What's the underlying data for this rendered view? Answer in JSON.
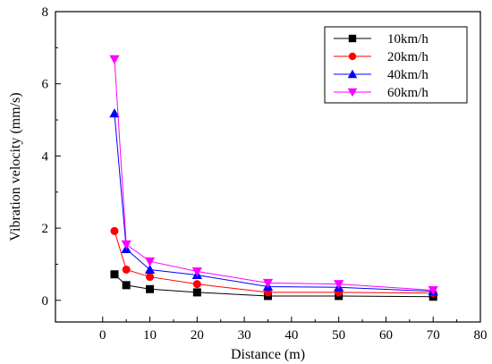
{
  "chart_data": {
    "type": "line",
    "title": "",
    "xlabel": "Distance (m)",
    "ylabel": "Vibration velocity (mm/s)",
    "xlim": [
      -10,
      80
    ],
    "ylim": [
      -0.6,
      8
    ],
    "xticks": [
      0,
      10,
      20,
      30,
      40,
      50,
      60,
      70,
      80
    ],
    "yticks": [
      0,
      2,
      4,
      6,
      8
    ],
    "legend_position": "top-right",
    "grid": false,
    "x": [
      2.5,
      5,
      10,
      20,
      35,
      50,
      70
    ],
    "series": [
      {
        "name": "10km/h",
        "color": "#000000",
        "marker": "square",
        "values": [
          0.72,
          0.42,
          0.31,
          0.22,
          0.12,
          0.12,
          0.1
        ]
      },
      {
        "name": "20km/h",
        "color": "#ff0000",
        "marker": "circle",
        "values": [
          1.92,
          0.85,
          0.65,
          0.45,
          0.22,
          0.22,
          0.2
        ]
      },
      {
        "name": "40km/h",
        "color": "#0000ff",
        "marker": "triangle-up",
        "values": [
          5.18,
          1.42,
          0.85,
          0.7,
          0.38,
          0.36,
          0.25
        ]
      },
      {
        "name": "60km/h",
        "color": "#ff00ff",
        "marker": "triangle-down",
        "values": [
          6.68,
          1.55,
          1.08,
          0.8,
          0.48,
          0.45,
          0.28
        ]
      }
    ]
  }
}
